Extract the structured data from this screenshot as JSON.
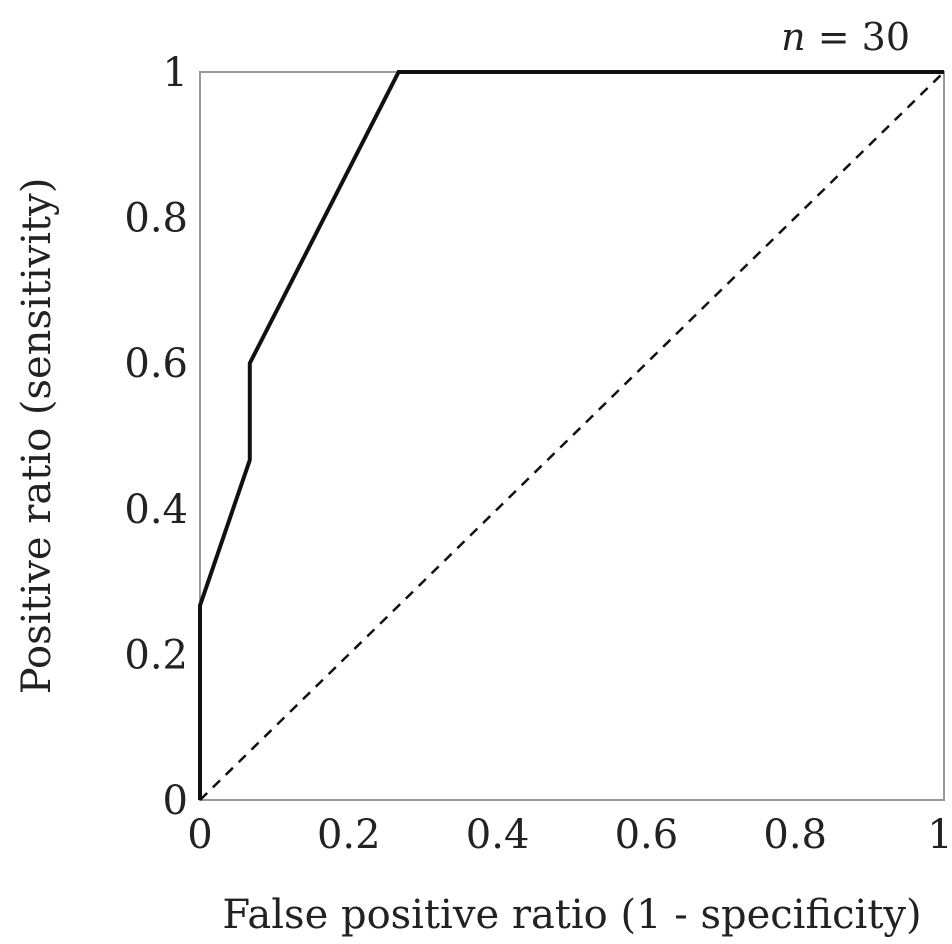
{
  "chart_data": {
    "type": "line",
    "title": "",
    "xlabel": "False positive ratio (1 - specificity)",
    "ylabel": "Positive ratio (sensitivity)",
    "xlim": [
      0,
      1
    ],
    "ylim": [
      0,
      1
    ],
    "x_ticks": [
      "0",
      "0.2",
      "0.4",
      "0.6",
      "0.8",
      "1"
    ],
    "y_ticks": [
      "0",
      "0.2",
      "0.4",
      "0.6",
      "0.8",
      "1"
    ],
    "x_tick_values": [
      0,
      0.2,
      0.4,
      0.6,
      0.8,
      1
    ],
    "y_tick_values": [
      0,
      0.2,
      0.4,
      0.6,
      0.8,
      1
    ],
    "annotation": {
      "var": "n",
      "rest": " = 30"
    },
    "grid": false,
    "series": [
      {
        "style": "solid",
        "color": "#111111",
        "x": [
          0,
          0,
          0.067,
          0.067,
          0.267,
          1
        ],
        "y": [
          0,
          0.267,
          0.467,
          0.6,
          1,
          1
        ]
      },
      {
        "style": "dashed",
        "color": "#111111",
        "x": [
          0,
          1
        ],
        "y": [
          0,
          1
        ]
      }
    ]
  }
}
